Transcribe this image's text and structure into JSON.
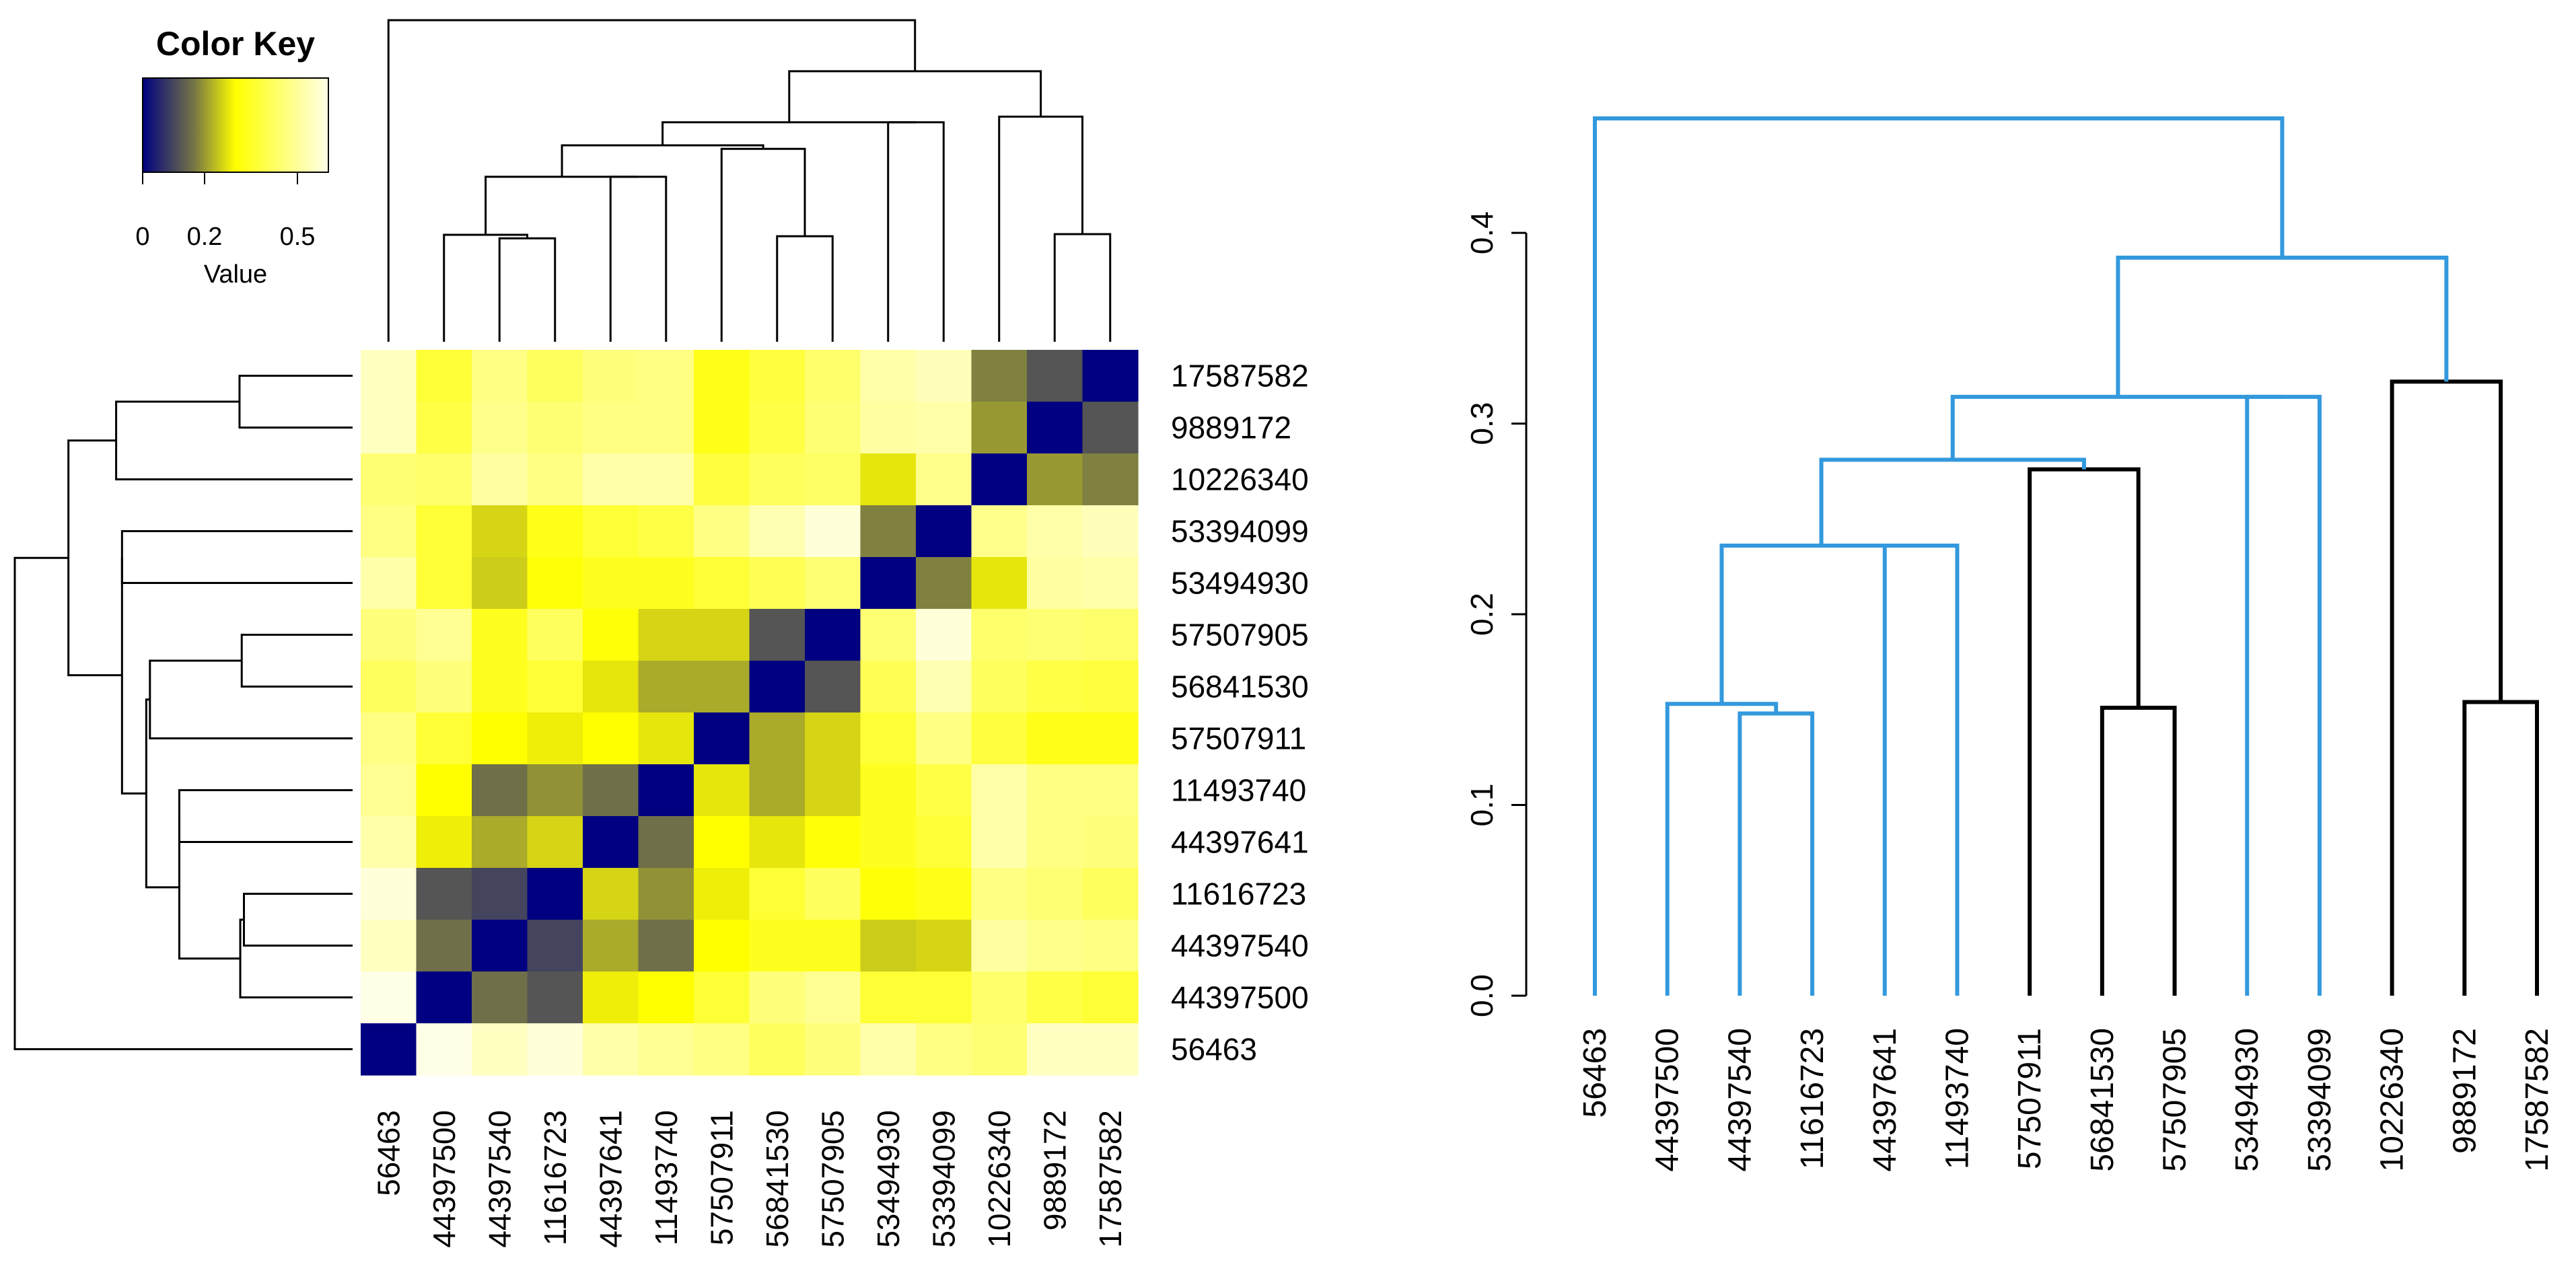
{
  "colors": {
    "low": "#000080",
    "mid": "#ffff00",
    "high": "#ffffe8",
    "dendro_black": "#000000",
    "dendro_blue": "#3399dd"
  },
  "color_key": {
    "title": "Color Key",
    "label": "Value",
    "ticks": [
      "0",
      "0.2",
      "0.5"
    ],
    "tick_values": [
      0,
      0.2,
      0.5
    ],
    "range": [
      0,
      0.6
    ]
  },
  "labels": [
    "56463",
    "44397500",
    "44397540",
    "11616723",
    "44397641",
    "11493740",
    "57507911",
    "56841530",
    "57507905",
    "53494930",
    "53394099",
    "10226340",
    "9889172",
    "17587582"
  ],
  "heatmap_row_labels": [
    "17587582",
    "9889172",
    "10226340",
    "53394099",
    "53494930",
    "57507905",
    "56841530",
    "57507911",
    "11493740",
    "44397641",
    "11616723",
    "44397540",
    "44397500",
    "56463"
  ],
  "chart_data": [
    {
      "type": "heatmap",
      "columns": [
        "56463",
        "44397500",
        "44397540",
        "11616723",
        "44397641",
        "11493740",
        "57507911",
        "56841530",
        "57507905",
        "53494930",
        "53394099",
        "10226340",
        "9889172",
        "17587582"
      ],
      "rows": [
        "17587582",
        "9889172",
        "10226340",
        "53394099",
        "53494930",
        "57507905",
        "56841530",
        "57507911",
        "11493740",
        "44397641",
        "11616723",
        "44397540",
        "44397500",
        "56463"
      ],
      "values": [
        [
          0.55,
          0.37,
          0.47,
          0.42,
          0.46,
          0.47,
          0.33,
          0.38,
          0.44,
          0.52,
          0.54,
          0.15,
          0.1,
          0.0
        ],
        [
          0.55,
          0.39,
          0.48,
          0.45,
          0.47,
          0.47,
          0.33,
          0.39,
          0.45,
          0.51,
          0.52,
          0.18,
          0.0,
          0.1
        ],
        [
          0.45,
          0.44,
          0.51,
          0.47,
          0.52,
          0.52,
          0.38,
          0.42,
          0.43,
          0.27,
          0.48,
          0.0,
          0.18,
          0.15
        ],
        [
          0.47,
          0.37,
          0.25,
          0.33,
          0.37,
          0.39,
          0.47,
          0.53,
          0.58,
          0.15,
          0.0,
          0.48,
          0.52,
          0.54
        ],
        [
          0.52,
          0.37,
          0.24,
          0.31,
          0.34,
          0.34,
          0.37,
          0.41,
          0.45,
          0.0,
          0.15,
          0.27,
          0.51,
          0.52
        ],
        [
          0.46,
          0.49,
          0.34,
          0.42,
          0.31,
          0.25,
          0.25,
          0.1,
          0.0,
          0.45,
          0.58,
          0.44,
          0.45,
          0.44
        ],
        [
          0.42,
          0.46,
          0.34,
          0.37,
          0.27,
          0.2,
          0.2,
          0.0,
          0.1,
          0.41,
          0.53,
          0.42,
          0.39,
          0.38
        ],
        [
          0.47,
          0.37,
          0.3,
          0.28,
          0.3,
          0.27,
          0.0,
          0.2,
          0.25,
          0.37,
          0.47,
          0.38,
          0.33,
          0.33
        ],
        [
          0.49,
          0.3,
          0.13,
          0.17,
          0.13,
          0.0,
          0.27,
          0.2,
          0.25,
          0.34,
          0.39,
          0.52,
          0.47,
          0.47
        ],
        [
          0.52,
          0.28,
          0.2,
          0.25,
          0.0,
          0.13,
          0.3,
          0.27,
          0.31,
          0.34,
          0.37,
          0.52,
          0.47,
          0.46
        ],
        [
          0.58,
          0.1,
          0.08,
          0.0,
          0.25,
          0.17,
          0.28,
          0.37,
          0.42,
          0.31,
          0.33,
          0.47,
          0.45,
          0.42
        ],
        [
          0.55,
          0.13,
          0.0,
          0.08,
          0.2,
          0.13,
          0.3,
          0.34,
          0.34,
          0.24,
          0.25,
          0.51,
          0.48,
          0.47
        ],
        [
          0.6,
          0.0,
          0.13,
          0.1,
          0.28,
          0.3,
          0.37,
          0.46,
          0.49,
          0.37,
          0.37,
          0.44,
          0.39,
          0.37
        ],
        [
          0.0,
          0.6,
          0.55,
          0.58,
          0.52,
          0.49,
          0.47,
          0.42,
          0.46,
          0.52,
          0.47,
          0.45,
          0.55,
          0.55
        ]
      ],
      "color_range": [
        0,
        0.6
      ]
    },
    {
      "type": "dendrogram",
      "leaves": [
        "56463",
        "44397500",
        "44397540",
        "11616723",
        "44397641",
        "11493740",
        "57507911",
        "56841530",
        "57507905",
        "53494930",
        "53394099",
        "10226340",
        "9889172",
        "17587582"
      ],
      "yticks": [
        "0.0",
        "0.1",
        "0.2",
        "0.3",
        "0.4"
      ],
      "ytick_values": [
        0,
        0.1,
        0.2,
        0.3,
        0.4
      ],
      "ylim": [
        0,
        0.46
      ],
      "merges": [
        {
          "a": "44397540",
          "b": "11616723",
          "height": 0.148,
          "color": "blue"
        },
        {
          "a": "44397500",
          "b": "C1",
          "height": 0.153,
          "color": "blue"
        },
        {
          "a": "56841530",
          "b": "57507905",
          "height": 0.151,
          "color": "black"
        },
        {
          "a": "9889172",
          "b": "17587582",
          "height": 0.154,
          "color": "black"
        },
        {
          "a": "44397641",
          "b": "11493740",
          "height": 0.236,
          "color": "blue"
        },
        {
          "a": "C2",
          "b": "C5",
          "height": 0.236,
          "color": "blue"
        },
        {
          "a": "57507911",
          "b": "C3",
          "height": 0.276,
          "color": "black"
        },
        {
          "a": "C6",
          "b": "C7",
          "height": 0.281,
          "color": "blue"
        },
        {
          "a": "53494930",
          "b": "53394099",
          "height": 0.314,
          "color": "blue"
        },
        {
          "a": "C8",
          "b": "C9",
          "height": 0.314,
          "color": "blue"
        },
        {
          "a": "10226340",
          "b": "C4",
          "height": 0.322,
          "color": "black"
        },
        {
          "a": "C10",
          "b": "C11",
          "height": 0.387,
          "color": "blue"
        },
        {
          "a": "56463",
          "b": "C12",
          "height": 0.46,
          "color": "blue"
        }
      ]
    }
  ]
}
